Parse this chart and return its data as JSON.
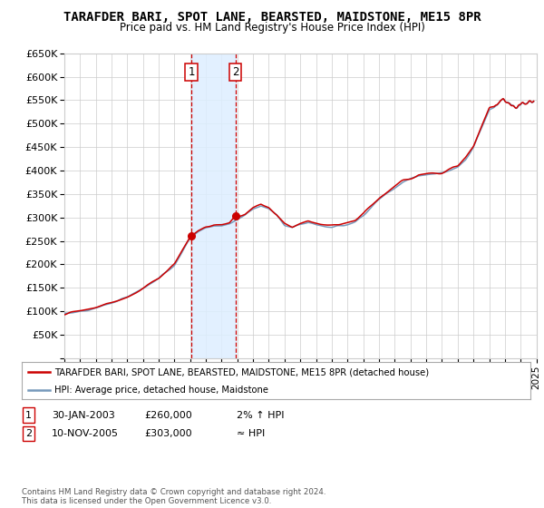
{
  "title": "TARAFDER BARI, SPOT LANE, BEARSTED, MAIDSTONE, ME15 8PR",
  "subtitle": "Price paid vs. HM Land Registry's House Price Index (HPI)",
  "legend_line1": "TARAFDER BARI, SPOT LANE, BEARSTED, MAIDSTONE, ME15 8PR (detached house)",
  "legend_line2": "HPI: Average price, detached house, Maidstone",
  "footnote": "Contains HM Land Registry data © Crown copyright and database right 2024.\nThis data is licensed under the Open Government Licence v3.0.",
  "transaction1_date": "30-JAN-2003",
  "transaction1_price": "£260,000",
  "transaction1_hpi": "2% ↑ HPI",
  "transaction1_date_num": 2003.08,
  "transaction1_price_val": 260000,
  "transaction2_date": "10-NOV-2005",
  "transaction2_price": "£303,000",
  "transaction2_hpi": "≈ HPI",
  "transaction2_date_num": 2005.87,
  "transaction2_price_val": 303000,
  "hpi_color": "#7799bb",
  "property_color": "#cc0000",
  "shading_color": "#ddeeff",
  "grid_color": "#cccccc",
  "background_color": "#ffffff",
  "ylim": [
    0,
    650000
  ],
  "xlim_start": 1995,
  "xlim_end": 2025,
  "hpi_knots": [
    [
      1995.0,
      95000
    ],
    [
      1995.5,
      97000
    ],
    [
      1996.0,
      100000
    ],
    [
      1996.5,
      103000
    ],
    [
      1997.0,
      107000
    ],
    [
      1997.5,
      112000
    ],
    [
      1998.0,
      118000
    ],
    [
      1998.5,
      124000
    ],
    [
      1999.0,
      130000
    ],
    [
      1999.5,
      138000
    ],
    [
      2000.0,
      148000
    ],
    [
      2000.5,
      158000
    ],
    [
      2001.0,
      170000
    ],
    [
      2001.5,
      185000
    ],
    [
      2002.0,
      200000
    ],
    [
      2002.5,
      228000
    ],
    [
      2003.0,
      255000
    ],
    [
      2003.5,
      270000
    ],
    [
      2004.0,
      278000
    ],
    [
      2004.5,
      282000
    ],
    [
      2005.0,
      283000
    ],
    [
      2005.5,
      287000
    ],
    [
      2006.0,
      295000
    ],
    [
      2006.5,
      305000
    ],
    [
      2007.0,
      318000
    ],
    [
      2007.5,
      325000
    ],
    [
      2008.0,
      318000
    ],
    [
      2008.5,
      305000
    ],
    [
      2009.0,
      285000
    ],
    [
      2009.5,
      278000
    ],
    [
      2010.0,
      285000
    ],
    [
      2010.5,
      290000
    ],
    [
      2011.0,
      285000
    ],
    [
      2011.5,
      282000
    ],
    [
      2012.0,
      280000
    ],
    [
      2012.5,
      282000
    ],
    [
      2013.0,
      285000
    ],
    [
      2013.5,
      292000
    ],
    [
      2014.0,
      305000
    ],
    [
      2014.5,
      322000
    ],
    [
      2015.0,
      338000
    ],
    [
      2015.5,
      352000
    ],
    [
      2016.0,
      365000
    ],
    [
      2016.5,
      375000
    ],
    [
      2017.0,
      382000
    ],
    [
      2017.5,
      390000
    ],
    [
      2018.0,
      392000
    ],
    [
      2018.5,
      393000
    ],
    [
      2019.0,
      395000
    ],
    [
      2019.5,
      400000
    ],
    [
      2020.0,
      408000
    ],
    [
      2020.5,
      425000
    ],
    [
      2021.0,
      450000
    ],
    [
      2021.5,
      490000
    ],
    [
      2022.0,
      530000
    ],
    [
      2022.5,
      545000
    ],
    [
      2022.75,
      555000
    ],
    [
      2023.0,
      548000
    ],
    [
      2023.25,
      542000
    ],
    [
      2023.5,
      538000
    ],
    [
      2023.75,
      535000
    ],
    [
      2024.0,
      538000
    ],
    [
      2024.5,
      545000
    ],
    [
      2024.75,
      548000
    ]
  ],
  "prop_knots": [
    [
      1995.0,
      95000
    ],
    [
      1995.5,
      97500
    ],
    [
      1996.0,
      100500
    ],
    [
      1996.5,
      104000
    ],
    [
      1997.0,
      108000
    ],
    [
      1997.5,
      113000
    ],
    [
      1998.0,
      119000
    ],
    [
      1998.5,
      125000
    ],
    [
      1999.0,
      131000
    ],
    [
      1999.5,
      139000
    ],
    [
      2000.0,
      149000
    ],
    [
      2000.5,
      159000
    ],
    [
      2001.0,
      171000
    ],
    [
      2001.5,
      186000
    ],
    [
      2002.0,
      202000
    ],
    [
      2002.5,
      230000
    ],
    [
      2003.0,
      258000
    ],
    [
      2003.08,
      260000
    ],
    [
      2003.5,
      272000
    ],
    [
      2004.0,
      280000
    ],
    [
      2004.5,
      284000
    ],
    [
      2005.0,
      285000
    ],
    [
      2005.5,
      289000
    ],
    [
      2005.87,
      303000
    ],
    [
      2006.0,
      302000
    ],
    [
      2006.5,
      308000
    ],
    [
      2007.0,
      320000
    ],
    [
      2007.5,
      327000
    ],
    [
      2008.0,
      320000
    ],
    [
      2008.5,
      307000
    ],
    [
      2009.0,
      287000
    ],
    [
      2009.5,
      280000
    ],
    [
      2010.0,
      287000
    ],
    [
      2010.5,
      292000
    ],
    [
      2011.0,
      287000
    ],
    [
      2011.5,
      284000
    ],
    [
      2012.0,
      282000
    ],
    [
      2012.5,
      284000
    ],
    [
      2013.0,
      287000
    ],
    [
      2013.5,
      294000
    ],
    [
      2014.0,
      307000
    ],
    [
      2014.5,
      324000
    ],
    [
      2015.0,
      340000
    ],
    [
      2015.5,
      354000
    ],
    [
      2016.0,
      367000
    ],
    [
      2016.5,
      377000
    ],
    [
      2017.0,
      384000
    ],
    [
      2017.5,
      392000
    ],
    [
      2018.0,
      394000
    ],
    [
      2018.5,
      395000
    ],
    [
      2019.0,
      397000
    ],
    [
      2019.5,
      402000
    ],
    [
      2020.0,
      410000
    ],
    [
      2020.5,
      427000
    ],
    [
      2021.0,
      452000
    ],
    [
      2021.5,
      492000
    ],
    [
      2022.0,
      532000
    ],
    [
      2022.5,
      547000
    ],
    [
      2022.75,
      557000
    ],
    [
      2023.0,
      550000
    ],
    [
      2023.25,
      544000
    ],
    [
      2023.5,
      540000
    ],
    [
      2023.75,
      537000
    ],
    [
      2024.0,
      540000
    ],
    [
      2024.5,
      547000
    ],
    [
      2024.75,
      550000
    ]
  ]
}
